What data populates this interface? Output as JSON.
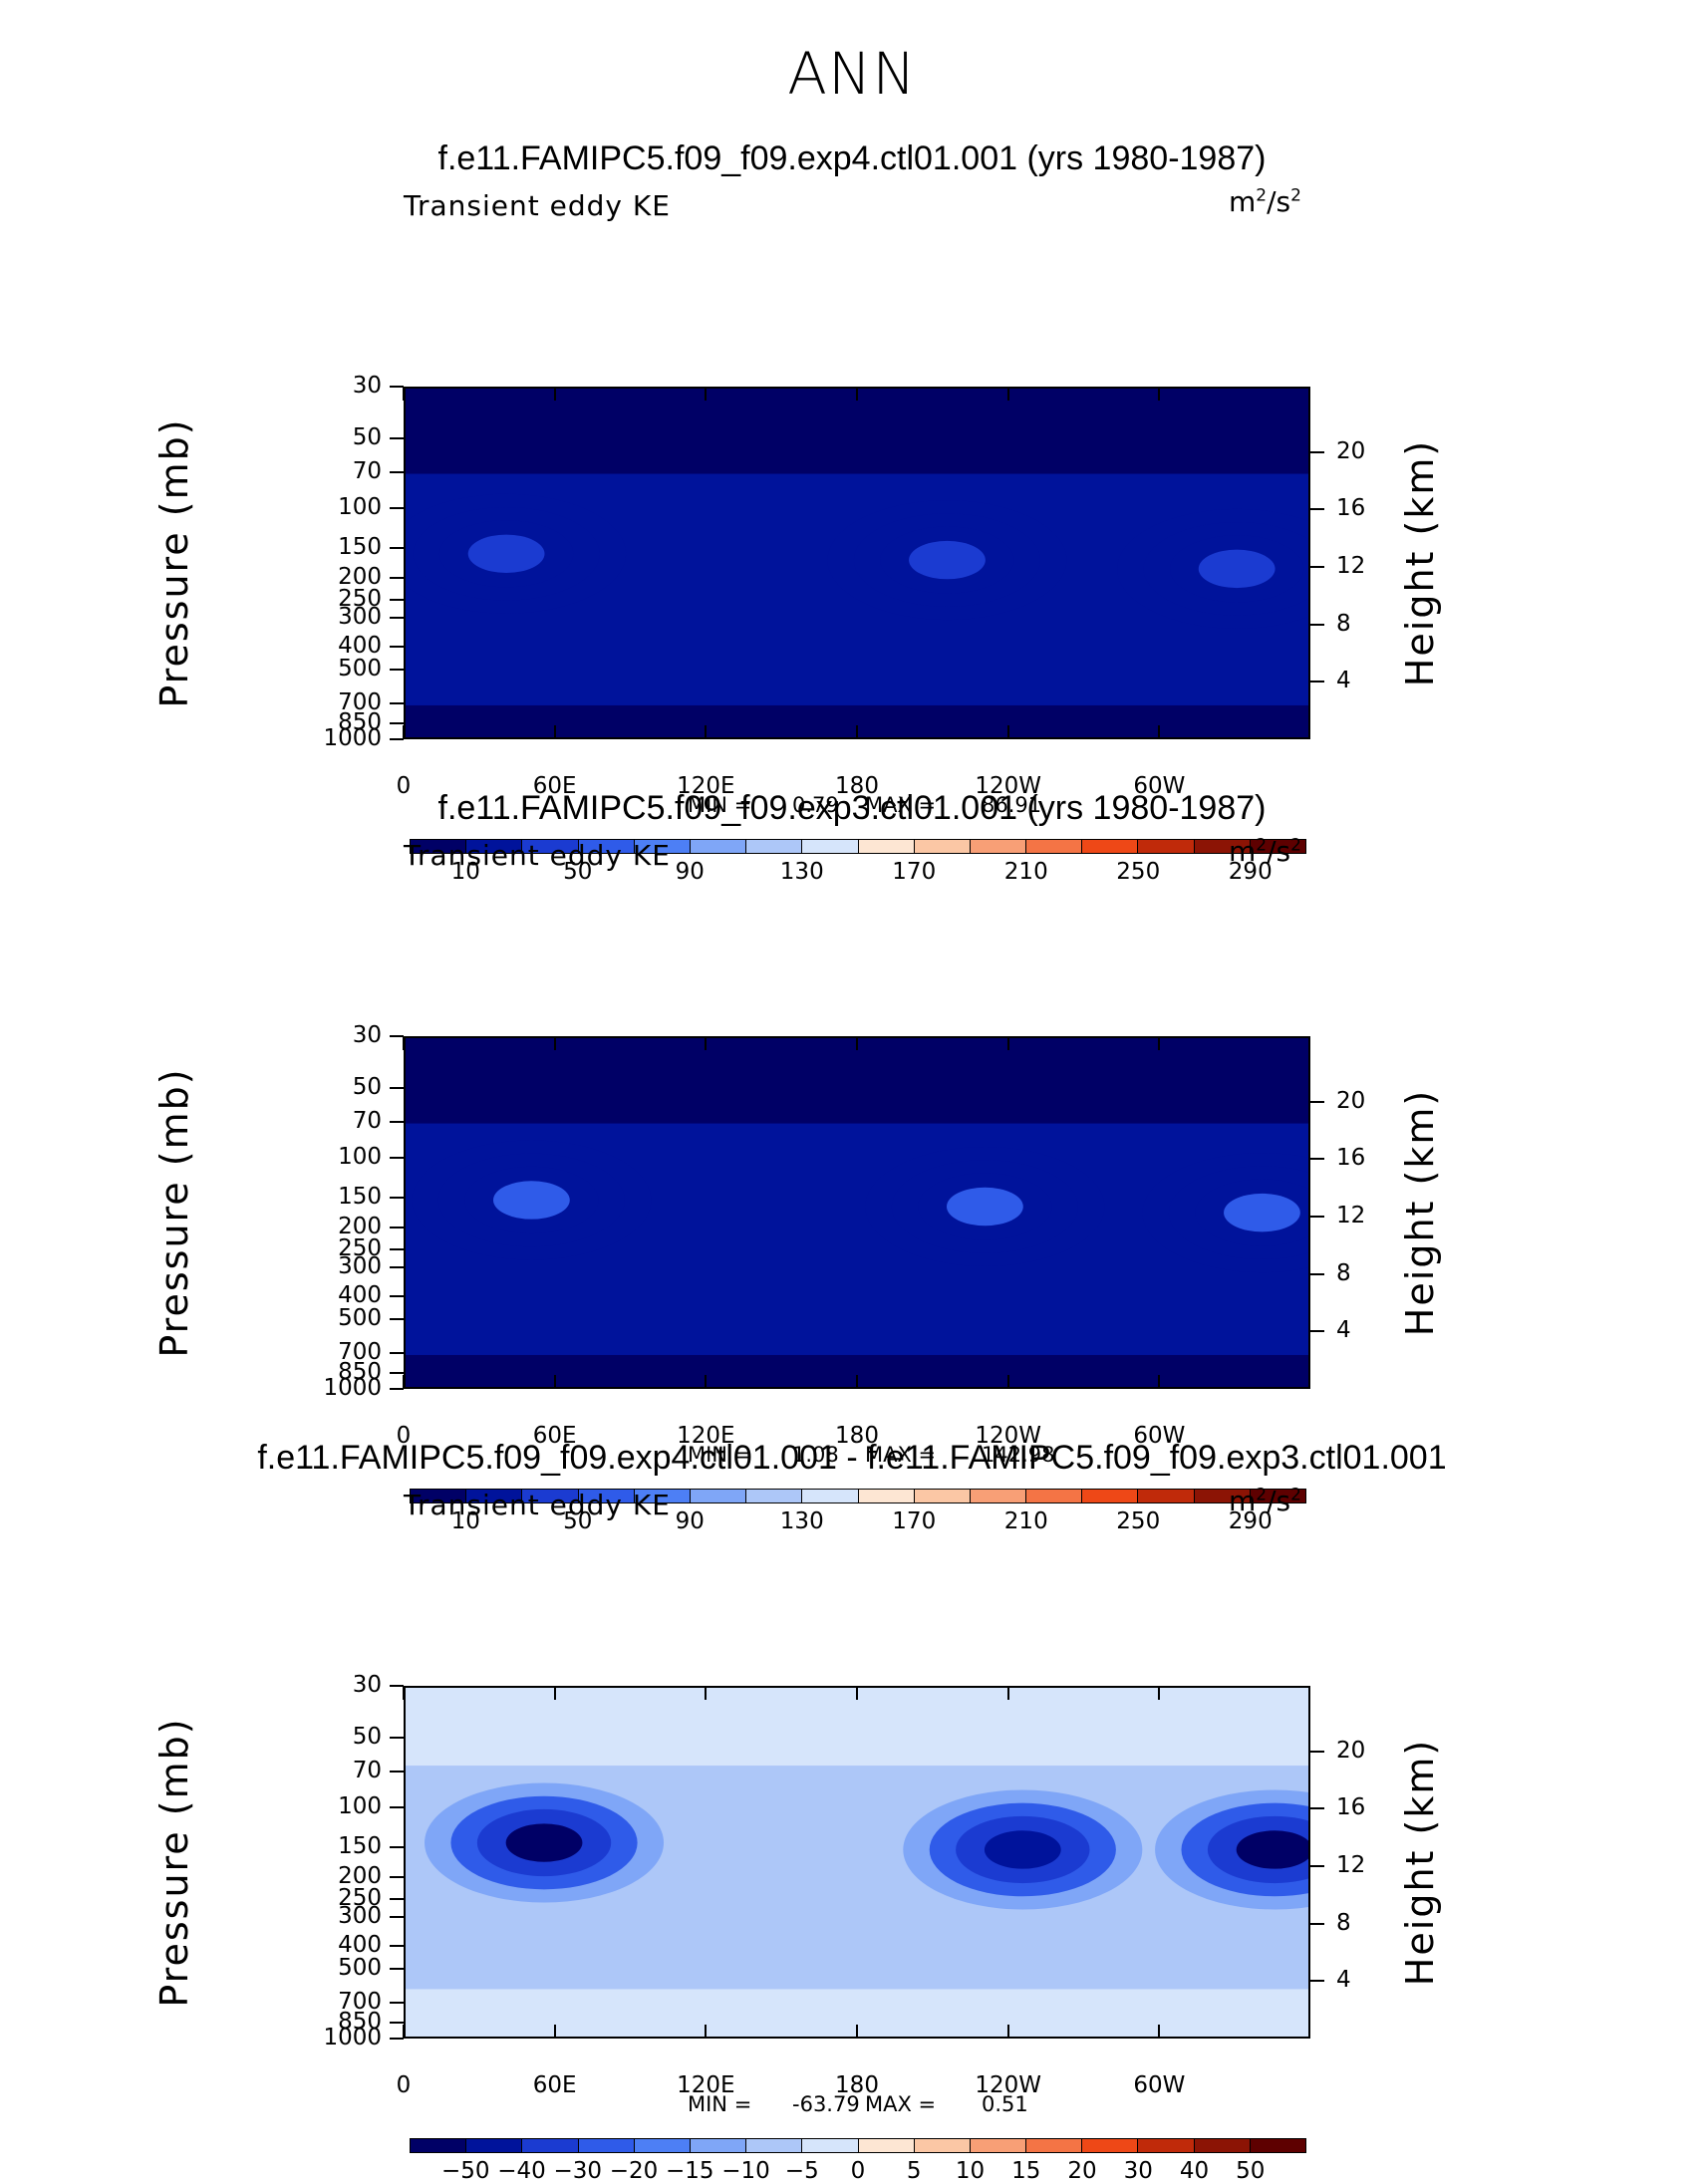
{
  "suptitle": "ANN",
  "chart_data": [
    {
      "type": "heatmap",
      "title": "f.e11.FAMIPC5.f09_f09.exp4.ctl01.001 (yrs 1980-1987)",
      "left_subtitle": "Transient eddy KE",
      "units_base": "m",
      "units_sup1": "2",
      "units_mid": "/s",
      "units_sup2": "2",
      "ylabel": "Pressure (mb)",
      "ylabel_right": "Height (km)",
      "y_ticks": [
        "30",
        "50",
        "70",
        "100",
        "150",
        "200",
        "250",
        "300",
        "400",
        "500",
        "700",
        "850",
        "1000"
      ],
      "height_ticks": [
        "20",
        "16",
        "12",
        "8",
        "4"
      ],
      "x_ticks": [
        "0",
        "60E",
        "120E",
        "180",
        "120W",
        "60W"
      ],
      "min_label": "MIN =",
      "min_value": "0.79",
      "max_label": "MAX =",
      "max_value": "86.91",
      "colorbar_labels": [
        "10",
        "50",
        "90",
        "130",
        "170",
        "210",
        "250",
        "290"
      ],
      "levels": [
        10,
        50,
        90,
        130,
        170,
        210,
        250,
        290
      ],
      "features": [
        {
          "lon": 40,
          "p": 155,
          "value": 55
        },
        {
          "lon": 215,
          "p": 165,
          "value": 60
        },
        {
          "lon": 330,
          "p": 180,
          "value": 55
        }
      ],
      "colors": [
        "#000066",
        "#00139b",
        "#1b3bd1",
        "#2f5be9",
        "#4d7ff5",
        "#7fa6f7",
        "#adc7f8",
        "#d6e5fb",
        "#fde6d3",
        "#fbc7a5",
        "#f89f76",
        "#f47445",
        "#ee4817",
        "#c02a0a",
        "#8c1405",
        "#5e0000"
      ]
    },
    {
      "type": "heatmap",
      "title": "f.e11.FAMIPC5.f09_f09.exp3.ctl01.001 (yrs 1980-1987)",
      "left_subtitle": "Transient eddy KE",
      "units_base": "m",
      "units_sup1": "2",
      "units_mid": "/s",
      "units_sup2": "2",
      "ylabel": "Pressure (mb)",
      "ylabel_right": "Height (km)",
      "y_ticks": [
        "30",
        "50",
        "70",
        "100",
        "150",
        "200",
        "250",
        "300",
        "400",
        "500",
        "700",
        "850",
        "1000"
      ],
      "height_ticks": [
        "20",
        "16",
        "12",
        "8",
        "4"
      ],
      "x_ticks": [
        "0",
        "60E",
        "120E",
        "180",
        "120W",
        "60W"
      ],
      "min_label": "MIN =",
      "min_value": "1.08",
      "max_label": "MAX =",
      "max_value": "142.98",
      "colorbar_labels": [
        "10",
        "50",
        "90",
        "130",
        "170",
        "210",
        "250",
        "290"
      ],
      "levels": [
        10,
        50,
        90,
        130,
        170,
        210,
        250,
        290
      ],
      "features": [
        {
          "lon": 50,
          "p": 150,
          "value": 115
        },
        {
          "lon": 230,
          "p": 160,
          "value": 100
        },
        {
          "lon": 340,
          "p": 170,
          "value": 95
        }
      ],
      "colors": [
        "#000066",
        "#00139b",
        "#1b3bd1",
        "#2f5be9",
        "#4d7ff5",
        "#7fa6f7",
        "#adc7f8",
        "#d6e5fb",
        "#fde6d3",
        "#fbc7a5",
        "#f89f76",
        "#f47445",
        "#ee4817",
        "#c02a0a",
        "#8c1405",
        "#5e0000"
      ]
    },
    {
      "type": "heatmap",
      "title": "f.e11.FAMIPC5.f09_f09.exp4.ctl01.001 - f.e11.FAMIPC5.f09_f09.exp3.ctl01.001",
      "left_subtitle": "Transient eddy KE",
      "units_base": "m",
      "units_sup1": "2",
      "units_mid": "/s",
      "units_sup2": "2",
      "ylabel": "Pressure (mb)",
      "ylabel_right": "Height (km)",
      "y_ticks": [
        "30",
        "50",
        "70",
        "100",
        "150",
        "200",
        "250",
        "300",
        "400",
        "500",
        "700",
        "850",
        "1000"
      ],
      "height_ticks": [
        "20",
        "16",
        "12",
        "8",
        "4"
      ],
      "x_ticks": [
        "0",
        "60E",
        "120E",
        "180",
        "120W",
        "60W"
      ],
      "min_label": "MIN =",
      "min_value": "-63.79",
      "max_label": "MAX =",
      "max_value": "0.51",
      "colorbar_labels": [
        "−50",
        "−40",
        "−30",
        "−20",
        "−15",
        "−10",
        "−5",
        "0",
        "5",
        "10",
        "15",
        "20",
        "30",
        "40",
        "50"
      ],
      "levels": [
        -50,
        -40,
        -30,
        -20,
        -15,
        -10,
        -5,
        0,
        5,
        10,
        15,
        20,
        30,
        40,
        50
      ],
      "features": [
        {
          "lon": 55,
          "p": 140,
          "value": -55
        },
        {
          "lon": 245,
          "p": 150,
          "value": -45
        },
        {
          "lon": 345,
          "p": 150,
          "value": -60
        }
      ],
      "colors": [
        "#000066",
        "#00139b",
        "#1b3bd1",
        "#2f5be9",
        "#4d7ff5",
        "#7fa6f7",
        "#adc7f8",
        "#d6e5fb",
        "#fde6d3",
        "#fbc7a5",
        "#f89f76",
        "#f47445",
        "#ee4817",
        "#c02a0a",
        "#8c1405",
        "#5e0000"
      ]
    }
  ]
}
